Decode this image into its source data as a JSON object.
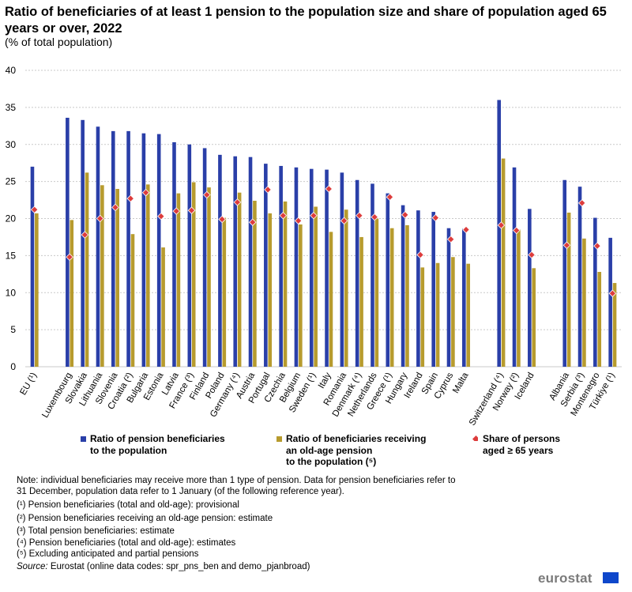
{
  "title": "Ratio of beneficiaries of at least 1 pension to the population size and share of population aged 65 years or over, 2022",
  "subtitle": "(% of total population)",
  "colors": {
    "series1": "#2a3fa8",
    "series2": "#b79b2e",
    "series3": "#dd3c3c",
    "grid": "#c9c9c9"
  },
  "chart_data": {
    "type": "bar",
    "title": "Ratio of beneficiaries of at least 1 pension to the population size and share of population aged 65 years or over, 2022",
    "ylim": [
      0,
      40
    ],
    "yticks": [
      "0",
      "5",
      "10",
      "15",
      "20",
      "25",
      "30",
      "35",
      "40"
    ],
    "grid": true,
    "groups": [
      [
        "EU (¹)"
      ],
      [
        "Luxembourg",
        "Slovakia",
        "Lithuania",
        "Slovenia",
        "Croatia (²)",
        "Bulgaria",
        "Estonia",
        "Latvia",
        "France (³)",
        "Finland",
        "Poland",
        "Germany (⁴)",
        "Austria",
        "Portugal",
        "Czechia",
        "Belgium",
        "Sweden (¹)",
        "Italy",
        "Romania",
        "Denmark (⁴)",
        "Netherlands",
        "Greece (¹)",
        "Hungary",
        "Ireland",
        "Spain",
        "Cyprus",
        "Malta"
      ],
      [
        "Switzerland (⁴)",
        "Norway (²)",
        "Iceland"
      ],
      [
        "Albania",
        "Serbia (³)",
        "Montenegro",
        "Türkiye (¹)"
      ]
    ],
    "categories": [
      "EU (¹)",
      "Luxembourg",
      "Slovakia",
      "Lithuania",
      "Slovenia",
      "Croatia (²)",
      "Bulgaria",
      "Estonia",
      "Latvia",
      "France (³)",
      "Finland",
      "Poland",
      "Germany (⁴)",
      "Austria",
      "Portugal",
      "Czechia",
      "Belgium",
      "Sweden (¹)",
      "Italy",
      "Romania",
      "Denmark (⁴)",
      "Netherlands",
      "Greece (¹)",
      "Hungary",
      "Ireland",
      "Spain",
      "Cyprus",
      "Malta",
      "Switzerland (⁴)",
      "Norway (²)",
      "Iceland",
      "Albania",
      "Serbia (³)",
      "Montenegro",
      "Türkiye (¹)"
    ],
    "series": [
      {
        "name": "Ratio of pension beneficiaries to the population",
        "kind": "bar",
        "values": [
          27.0,
          33.6,
          33.3,
          32.4,
          31.8,
          31.8,
          31.5,
          31.4,
          30.3,
          30.0,
          29.5,
          28.6,
          28.4,
          28.3,
          27.4,
          27.1,
          26.9,
          26.7,
          26.6,
          26.2,
          25.2,
          24.7,
          23.4,
          21.8,
          21.1,
          20.9,
          18.7,
          18.6,
          36.0,
          26.9,
          21.3,
          25.2,
          24.3,
          20.1,
          17.4
        ]
      },
      {
        "name": "Ratio of beneficiaries receiving an old-age pension to the population (⁵)",
        "kind": "bar",
        "values": [
          20.7,
          19.8,
          26.2,
          24.5,
          24.0,
          17.9,
          24.6,
          16.1,
          23.4,
          24.9,
          24.2,
          20.1,
          23.5,
          22.4,
          20.7,
          22.3,
          19.2,
          21.6,
          18.2,
          21.2,
          17.5,
          20.0,
          18.7,
          19.1,
          13.4,
          14.0,
          14.8,
          13.9,
          28.1,
          18.5,
          13.3,
          20.8,
          17.3,
          12.8,
          11.3
        ]
      },
      {
        "name": "Share of persons aged ≥ 65 years",
        "kind": "marker",
        "values": [
          21.2,
          14.8,
          17.8,
          20.0,
          21.5,
          22.7,
          23.5,
          20.3,
          21.0,
          21.1,
          23.2,
          19.9,
          22.2,
          19.5,
          23.9,
          20.4,
          19.7,
          20.4,
          24.0,
          19.7,
          20.4,
          20.2,
          22.9,
          20.5,
          15.1,
          20.1,
          17.2,
          18.5,
          19.1,
          18.4,
          15.1,
          16.4,
          22.1,
          16.3,
          9.9
        ]
      }
    ]
  },
  "legend": {
    "item1_line1": "Ratio of pension beneficiaries",
    "item1_line2": "to the population",
    "item2_line1": "Ratio of beneficiaries receiving",
    "item2_line2": "an old-age pension",
    "item2_line3": "to the population (⁵)",
    "item3_line1": "Share of persons",
    "item3_line2": "aged ≥ 65 years"
  },
  "notes": {
    "line1": "Note: individual beneficiaries may receive more than 1 type of pension. Data for pension beneficiaries refer to",
    "line2": "31 December, population data refer to 1 January (of the following reference year).",
    "fn1": "(¹) Pension beneficiaries (total and old-age): provisional",
    "fn2": "(²) Pension beneficiaries receiving an old-age pension: estimate",
    "fn3": "(³) Total pension beneficiaries: estimate",
    "fn4": "(⁴) Pension beneficiaries (total and old-age): estimates",
    "fn5": "(⁵) Excluding anticipated and partial pensions",
    "source_label": "Source:",
    "source_text": " Eurostat (online data codes: spr_pns_ben and demo_pjanbroad)"
  },
  "logo_text": "eurostat"
}
